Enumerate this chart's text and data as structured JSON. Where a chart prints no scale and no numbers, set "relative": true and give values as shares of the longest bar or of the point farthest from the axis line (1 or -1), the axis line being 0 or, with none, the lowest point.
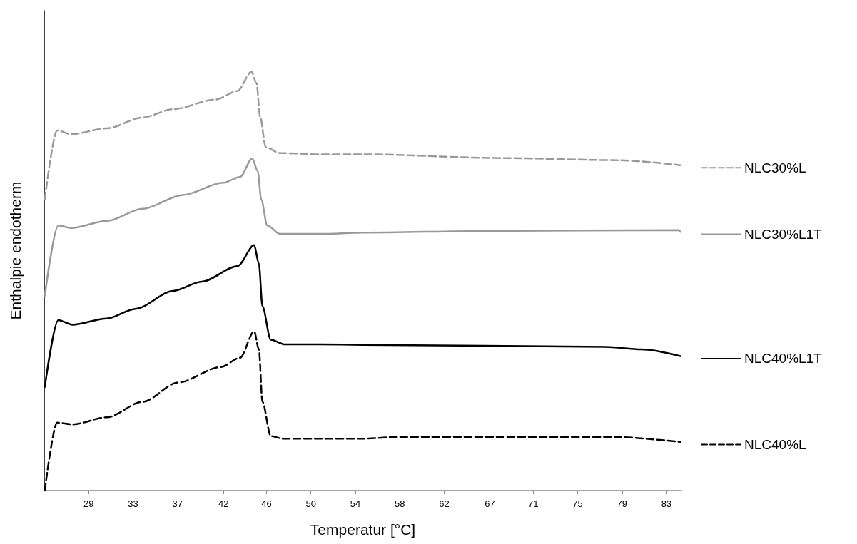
{
  "chart_data": {
    "type": "line",
    "relative": true,
    "xlabel": "Temperatur [°C]",
    "ylabel": "Enthalpie endotherm",
    "xlim": [
      24.85,
      84.4
    ],
    "xticks": [
      {
        "value": 29,
        "label": "29"
      },
      {
        "value": 33.15,
        "label": "33"
      },
      {
        "value": 37.31,
        "label": "37"
      },
      {
        "value": 41.6,
        "label": "42"
      },
      {
        "value": 45.62,
        "label": "46"
      },
      {
        "value": 49.77,
        "label": "50"
      },
      {
        "value": 53.92,
        "label": "54"
      },
      {
        "value": 58.08,
        "label": "58"
      },
      {
        "value": 62.23,
        "label": "62"
      },
      {
        "value": 66.5,
        "label": "67"
      },
      {
        "value": 70.54,
        "label": "71"
      },
      {
        "value": 74.69,
        "label": "75"
      },
      {
        "value": 78.85,
        "label": "79"
      },
      {
        "value": 83,
        "label": "83"
      }
    ],
    "grid": false,
    "legend": "right",
    "marker": "none",
    "tick_labels": "x",
    "series": [
      {
        "name": "NLC30%L",
        "color": "#999999",
        "line_style": "dashed",
        "x": [
          24.9,
          26.05,
          27.38,
          30.71,
          34.04,
          36.9,
          40.89,
          42.89,
          44.22,
          44.69,
          45.02,
          45.55,
          46.88,
          50.68,
          54.67,
          67.79,
          78.44,
          84.3
        ],
        "values": [
          0.695,
          0.86,
          0.851,
          0.865,
          0.891,
          0.911,
          0.934,
          0.954,
          1.0,
          0.973,
          0.894,
          0.82,
          0.806,
          0.803,
          0.803,
          0.794,
          0.789,
          0.777
        ]
      },
      {
        "name": "NLC30%L1T",
        "color": "#999999",
        "line_style": "solid",
        "x": [
          24.9,
          26.16,
          27.38,
          30.71,
          34.04,
          37.81,
          41.56,
          43.14,
          44.29,
          44.8,
          45.13,
          45.69,
          46.88,
          50.68,
          54.67,
          66.19,
          84.17,
          84.3
        ],
        "values": [
          0.465,
          0.633,
          0.627,
          0.644,
          0.673,
          0.706,
          0.735,
          0.749,
          0.793,
          0.763,
          0.695,
          0.633,
          0.613,
          0.613,
          0.616,
          0.62,
          0.622,
          0.618
        ]
      },
      {
        "name": "NLC40%L1T",
        "color": "#000000",
        "line_style": "solid",
        "x": [
          24.9,
          26.16,
          27.49,
          30.71,
          33.37,
          36.92,
          39.58,
          42.91,
          44.47,
          44.91,
          45.24,
          46.02,
          47.35,
          50.68,
          54.67,
          77.3,
          80.63,
          84.3
        ],
        "values": [
          0.247,
          0.407,
          0.396,
          0.411,
          0.434,
          0.477,
          0.499,
          0.536,
          0.586,
          0.542,
          0.44,
          0.36,
          0.349,
          0.349,
          0.348,
          0.343,
          0.337,
          0.321
        ]
      },
      {
        "name": "NLC40%L",
        "color": "#000000",
        "line_style": "dashed",
        "x": [
          24.9,
          26.05,
          27.49,
          30.71,
          34.04,
          37.36,
          41.36,
          43.14,
          44.47,
          44.91,
          45.24,
          46.02,
          47.13,
          50.68,
          54.67,
          58.0,
          78.17,
          84.3
        ],
        "values": [
          0,
          0.162,
          0.158,
          0.175,
          0.212,
          0.258,
          0.295,
          0.317,
          0.38,
          0.337,
          0.212,
          0.13,
          0.124,
          0.124,
          0.124,
          0.128,
          0.128,
          0.116
        ]
      }
    ]
  }
}
